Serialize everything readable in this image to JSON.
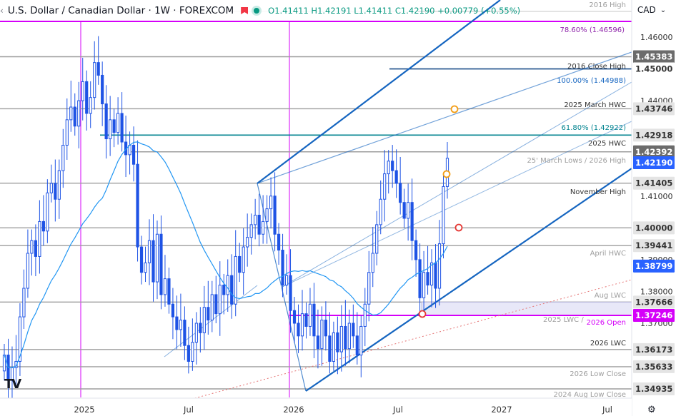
{
  "header": {
    "symbol": "U.S. Dollar / Canadian Dollar · 1W · FOREXCOM",
    "ohlc": "O1.41411 H1.42191 L1.41411 C1.42190 +0.00779 (+0.55%)",
    "currency": "CAD",
    "logo": "TV",
    "colors": {
      "up": "#089981",
      "flag": "#f23645"
    }
  },
  "chart_data": {
    "type": "candlestick",
    "y_range": [
      1.3445,
      1.4655
    ],
    "x_ticks": [
      "2025",
      "Jul",
      "2026",
      "Jul",
      "2027",
      "Jul"
    ],
    "y_ticks": [
      "1.46000",
      "1.45000",
      "1.44000",
      "1.43000",
      "1.42000",
      "1.41000",
      "1.40000",
      "1.39000",
      "1.38000",
      "1.37000"
    ],
    "colors": {
      "candle": "#1e53e5",
      "line": "#2962ff",
      "pitchfork": "#1565c0",
      "ma": "#2196f3",
      "magenta": "#d500f9",
      "fib": "#00838f"
    },
    "levels": [
      {
        "price": 1.4656,
        "label": "2016 High"
      },
      {
        "price": 1.46596,
        "label": "78.60% (1.46596)"
      },
      {
        "price": 1.45383,
        "label": ""
      },
      {
        "price": 1.45,
        "label": "2016 Close High"
      },
      {
        "price": 1.44988,
        "label": "100.00% (1.44988)"
      },
      {
        "price": 1.43746,
        "label": "2025 March HWC"
      },
      {
        "price": 1.42922,
        "label": "61.80% (1.42922)"
      },
      {
        "price": 1.42918,
        "label": "2025 HWC"
      },
      {
        "price": 1.42392,
        "label": "25' March Lows / 2026 High"
      },
      {
        "price": 1.41405,
        "label": "November High"
      },
      {
        "price": 1.4,
        "label": ""
      },
      {
        "price": 1.39441,
        "label": "April HWC"
      },
      {
        "price": 1.37666,
        "label": "Aug LWC"
      },
      {
        "price": 1.37246,
        "label": "2025 LWC / 2026 Open"
      },
      {
        "price": 1.36173,
        "label": "2026 LWC"
      },
      {
        "price": 1.35633,
        "label": "2026 Low Close"
      },
      {
        "price": 1.34935,
        "label": "2024 Aug Low Close"
      }
    ],
    "label_texts": {
      "h2016": "2016 High",
      "fib786": "78.60% (1.46596)",
      "close2016": "2016 Close High",
      "fib100": "100.00% (1.44988)",
      "march_hwc": "2025 March HWC",
      "fib618": "61.80% (1.42922)",
      "hwc2025": "2025 HWC",
      "march_lows": "25' March Lows / 2026 High",
      "nov_high": "November High",
      "april_hwc": "April HWC",
      "aug_lwc": "Aug LWC",
      "lwc2025": "2025 LWC /",
      "open2026": "2026 Open",
      "lwc2026": "2026 LWC",
      "low_close2026": "2026 Low Close",
      "aug_low2024": "2024 Aug Low Close"
    },
    "price_tags": [
      {
        "value": "1.45383",
        "style": "gray"
      },
      {
        "value": "1.45000",
        "style": "plain"
      },
      {
        "value": "1.43746",
        "style": "light"
      },
      {
        "value": "1.42918",
        "style": "light"
      },
      {
        "value": "1.42392",
        "style": "gray"
      },
      {
        "value": "1.42190",
        "style": "blue"
      },
      {
        "value": "1.41405",
        "style": "light"
      },
      {
        "value": "1.40000",
        "style": "light"
      },
      {
        "value": "1.39441",
        "style": "light"
      },
      {
        "value": "1.38799",
        "style": "blue"
      },
      {
        "value": "1.37666",
        "style": "light"
      },
      {
        "value": "1.37246",
        "style": "magenta"
      },
      {
        "value": "1.36173",
        "style": "light"
      },
      {
        "value": "1.35633",
        "style": "light"
      },
      {
        "value": "1.34935",
        "style": "light"
      }
    ]
  }
}
